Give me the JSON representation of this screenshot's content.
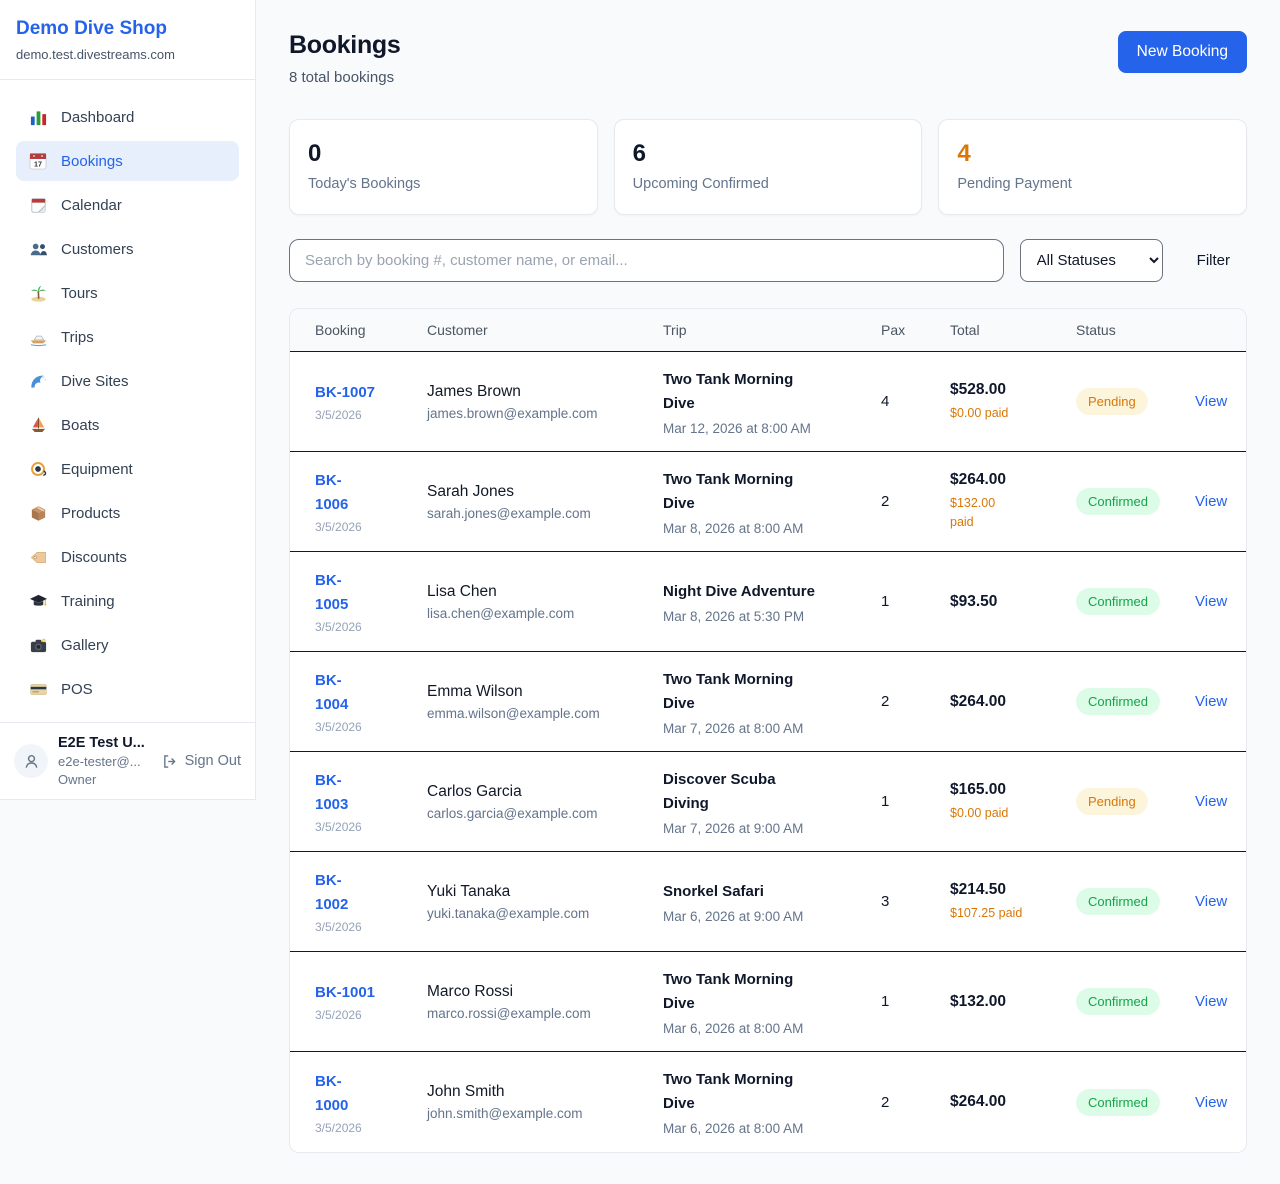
{
  "colors": {
    "accent_blue": "#2563eb",
    "pending_text": "#d97706",
    "pending_bg": "#fdf4dc",
    "confirmed_text": "#16a34a",
    "confirmed_bg": "#dcfce7",
    "page_bg": "#f8fafc"
  },
  "sidebar": {
    "title": "Demo Dive Shop",
    "subtitle": "demo.test.divestreams.com",
    "nav": [
      {
        "label": "Dashboard",
        "icon": "bar-chart",
        "active": false
      },
      {
        "label": "Bookings",
        "icon": "calendar-bookings",
        "active": true
      },
      {
        "label": "Calendar",
        "icon": "calendar",
        "active": false
      },
      {
        "label": "Customers",
        "icon": "people",
        "active": false
      },
      {
        "label": "Tours",
        "icon": "island",
        "active": false
      },
      {
        "label": "Trips",
        "icon": "speedboat",
        "active": false
      },
      {
        "label": "Dive Sites",
        "icon": "wave",
        "active": false
      },
      {
        "label": "Boats",
        "icon": "sailboat",
        "active": false
      },
      {
        "label": "Equipment",
        "icon": "dive-mask",
        "active": false
      },
      {
        "label": "Products",
        "icon": "package",
        "active": false
      },
      {
        "label": "Discounts",
        "icon": "tag",
        "active": false
      },
      {
        "label": "Training",
        "icon": "grad-cap",
        "active": false
      },
      {
        "label": "Gallery",
        "icon": "camera",
        "active": false
      },
      {
        "label": "POS",
        "icon": "credit-card",
        "active": false
      }
    ],
    "user": {
      "name": "E2E Test U...",
      "email": "e2e-tester@...",
      "role": "Owner",
      "signout_label": "Sign Out"
    }
  },
  "header": {
    "title": "Bookings",
    "subtitle": "8 total bookings",
    "new_booking_label": "New Booking"
  },
  "stats": [
    {
      "value": "0",
      "label": "Today's Bookings",
      "highlight": false
    },
    {
      "value": "6",
      "label": "Upcoming Confirmed",
      "highlight": false
    },
    {
      "value": "4",
      "label": "Pending Payment",
      "highlight": true
    }
  ],
  "filters": {
    "search_placeholder": "Search by booking #, customer name, or email...",
    "status_selected": "All Statuses",
    "filter_label": "Filter"
  },
  "table": {
    "columns": [
      "Booking",
      "Customer",
      "Trip",
      "Pax",
      "Total",
      "Status"
    ],
    "rows": [
      {
        "booking": "BK-1007",
        "date": "3/5/2026",
        "customer": "James Brown",
        "email": "james.brown@example.com",
        "trip": "Two Tank Morning\nDive",
        "trip_time": "Mar 12, 2026 at 8:00 AM",
        "pax": "4",
        "total": "$528.00",
        "paid": "$0.00 paid",
        "status": "Pending",
        "view_label": "View"
      },
      {
        "booking": "BK-\n1006",
        "date": "3/5/2026",
        "customer": "Sarah Jones",
        "email": "sarah.jones@example.com",
        "trip": "Two Tank Morning\nDive",
        "trip_time": "Mar 8, 2026 at 8:00 AM",
        "pax": "2",
        "total": "$264.00",
        "paid": "$132.00\npaid",
        "status": "Confirmed",
        "view_label": "View"
      },
      {
        "booking": "BK-\n1005",
        "date": "3/5/2026",
        "customer": "Lisa Chen",
        "email": "lisa.chen@example.com",
        "trip": "Night Dive Adventure",
        "trip_time": "Mar 8, 2026 at 5:30 PM",
        "pax": "1",
        "total": "$93.50",
        "paid": "",
        "status": "Confirmed",
        "view_label": "View"
      },
      {
        "booking": "BK-\n1004",
        "date": "3/5/2026",
        "customer": "Emma Wilson",
        "email": "emma.wilson@example.com",
        "trip": "Two Tank Morning\nDive",
        "trip_time": "Mar 7, 2026 at 8:00 AM",
        "pax": "2",
        "total": "$264.00",
        "paid": "",
        "status": "Confirmed",
        "view_label": "View"
      },
      {
        "booking": "BK-\n1003",
        "date": "3/5/2026",
        "customer": "Carlos Garcia",
        "email": "carlos.garcia@example.com",
        "trip": "Discover Scuba\nDiving",
        "trip_time": "Mar 7, 2026 at 9:00 AM",
        "pax": "1",
        "total": "$165.00",
        "paid": "$0.00 paid",
        "status": "Pending",
        "view_label": "View"
      },
      {
        "booking": "BK-\n1002",
        "date": "3/5/2026",
        "customer": "Yuki Tanaka",
        "email": "yuki.tanaka@example.com",
        "trip": "Snorkel Safari",
        "trip_time": "Mar 6, 2026 at 9:00 AM",
        "pax": "3",
        "total": "$214.50",
        "paid": "$107.25 paid",
        "status": "Confirmed",
        "view_label": "View"
      },
      {
        "booking": "BK-1001",
        "date": "3/5/2026",
        "customer": "Marco Rossi",
        "email": "marco.rossi@example.com",
        "trip": "Two Tank Morning\nDive",
        "trip_time": "Mar 6, 2026 at 8:00 AM",
        "pax": "1",
        "total": "$132.00",
        "paid": "",
        "status": "Confirmed",
        "view_label": "View"
      },
      {
        "booking": "BK-\n1000",
        "date": "3/5/2026",
        "customer": "John Smith",
        "email": "john.smith@example.com",
        "trip": "Two Tank Morning\nDive",
        "trip_time": "Mar 6, 2026 at 8:00 AM",
        "pax": "2",
        "total": "$264.00",
        "paid": "",
        "status": "Confirmed",
        "view_label": "View"
      }
    ]
  }
}
